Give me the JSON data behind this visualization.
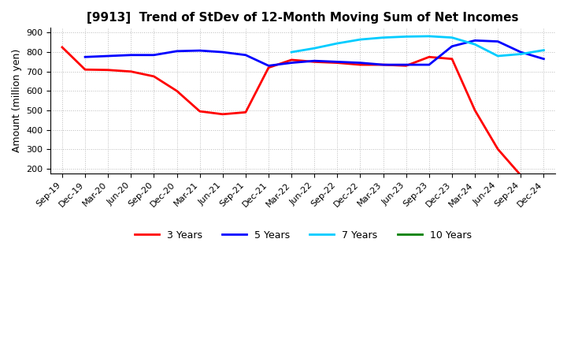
{
  "title": "[9913]  Trend of StDev of 12-Month Moving Sum of Net Incomes",
  "ylabel": "Amount (million yen)",
  "ylim": [
    175,
    925
  ],
  "yticks": [
    200,
    300,
    400,
    500,
    600,
    700,
    800,
    900
  ],
  "x_labels": [
    "Sep-19",
    "Dec-19",
    "Mar-20",
    "Jun-20",
    "Sep-20",
    "Dec-20",
    "Mar-21",
    "Jun-21",
    "Sep-21",
    "Dec-21",
    "Mar-22",
    "Jun-22",
    "Sep-22",
    "Dec-22",
    "Mar-23",
    "Jun-23",
    "Sep-23",
    "Dec-23",
    "Mar-24",
    "Jun-24",
    "Sep-24",
    "Dec-24"
  ],
  "series": {
    "3 Years": {
      "color": "#FF0000",
      "data": [
        825,
        710,
        708,
        700,
        675,
        600,
        495,
        480,
        490,
        720,
        760,
        750,
        745,
        735,
        735,
        730,
        775,
        765,
        500,
        300,
        165,
        null
      ]
    },
    "5 Years": {
      "color": "#0000FF",
      "data": [
        null,
        775,
        780,
        785,
        785,
        805,
        808,
        800,
        785,
        730,
        745,
        755,
        750,
        745,
        735,
        735,
        735,
        830,
        860,
        855,
        800,
        765
      ]
    },
    "7 Years": {
      "color": "#00CCFF",
      "data": [
        null,
        null,
        null,
        null,
        null,
        null,
        null,
        null,
        null,
        null,
        800,
        820,
        845,
        865,
        875,
        880,
        882,
        875,
        840,
        780,
        790,
        810
      ]
    },
    "10 Years": {
      "color": "#008000",
      "data": [
        null,
        null,
        null,
        null,
        null,
        null,
        null,
        null,
        null,
        null,
        null,
        null,
        null,
        null,
        null,
        null,
        null,
        null,
        null,
        null,
        null,
        null
      ]
    }
  },
  "background_color": "#FFFFFF",
  "grid_color": "#BBBBBB",
  "title_fontsize": 11,
  "axis_fontsize": 9,
  "tick_fontsize": 8,
  "legend_fontsize": 9,
  "linewidth": 2.0
}
